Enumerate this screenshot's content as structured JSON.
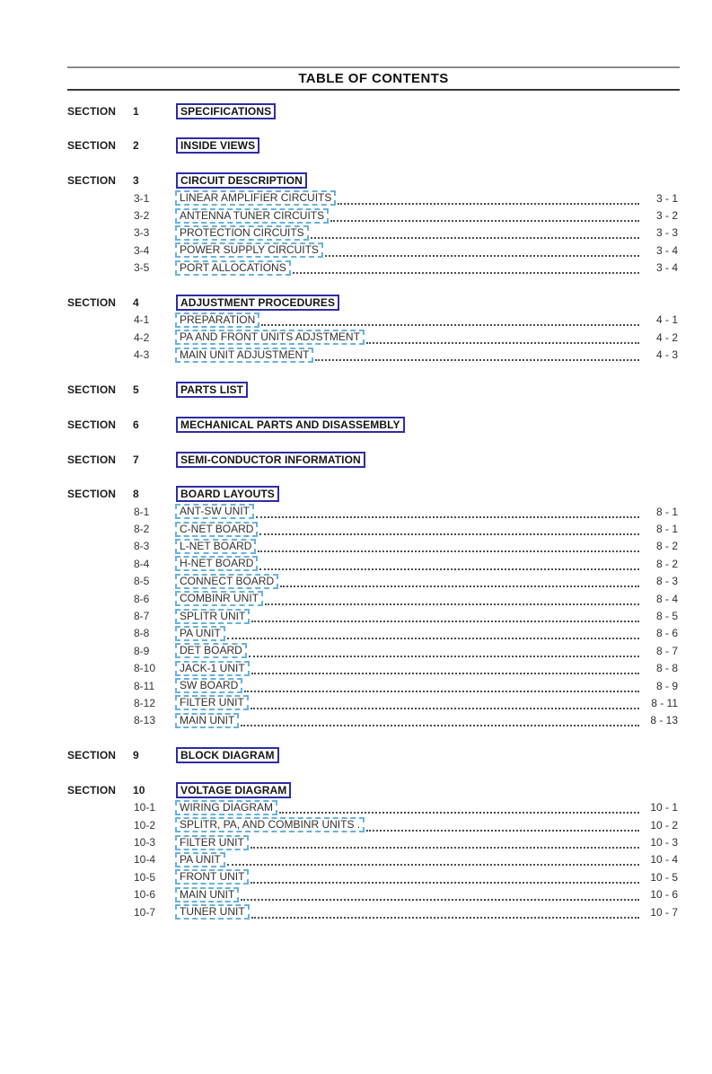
{
  "header": {
    "title": "TABLE OF CONTENTS"
  },
  "colors": {
    "section_link_border": "#2d2da8",
    "item_link_border": "#68b2dc",
    "leader_dot": "#4d4d4d",
    "rule_top": "#8a8a8a",
    "rule_bottom": "#383838"
  },
  "sections": [
    {
      "label": "SECTION",
      "number": "1",
      "title": "SPECIFICATIONS",
      "items": []
    },
    {
      "label": "SECTION",
      "number": "2",
      "title": "INSIDE VIEWS",
      "items": []
    },
    {
      "label": "SECTION",
      "number": "3",
      "title": "CIRCUIT DESCRIPTION",
      "items": [
        {
          "number": "3-1",
          "title": "LINEAR AMPLIFIER CIRCUITS",
          "page": "3 - 1"
        },
        {
          "number": "3-2",
          "title": "ANTENNA TUNER CIRCUITS",
          "page": "3 - 2"
        },
        {
          "number": "3-3",
          "title": "PROTECTION CIRCUITS",
          "page": "3 - 3"
        },
        {
          "number": "3-4",
          "title": "POWER SUPPLY CIRCUITS",
          "page": "3 - 4"
        },
        {
          "number": "3-5",
          "title": "PORT ALLOCATIONS",
          "page": "3 - 4"
        }
      ]
    },
    {
      "label": "SECTION",
      "number": "4",
      "title": "ADJUSTMENT PROCEDURES",
      "items": [
        {
          "number": "4-1",
          "title": "PREPARATION",
          "page": "4 - 1"
        },
        {
          "number": "4-2",
          "title": "PA AND FRONT UNITS ADJSTMENT",
          "page": "4 - 2"
        },
        {
          "number": "4-3",
          "title": "MAIN UNIT ADJUSTMENT",
          "page": "4 - 3"
        }
      ]
    },
    {
      "label": "SECTION",
      "number": "5",
      "title": "PARTS LIST",
      "items": []
    },
    {
      "label": "SECTION",
      "number": "6",
      "title": "MECHANICAL PARTS AND DISASSEMBLY",
      "items": []
    },
    {
      "label": "SECTION",
      "number": "7",
      "title": "SEMI-CONDUCTOR INFORMATION",
      "items": []
    },
    {
      "label": "SECTION",
      "number": "8",
      "title": "BOARD LAYOUTS",
      "items": [
        {
          "number": "8-1",
          "title": "ANT-SW UNIT",
          "page": "8 - 1"
        },
        {
          "number": "8-2",
          "title": "C-NET BOARD",
          "page": "8 - 1"
        },
        {
          "number": "8-3",
          "title": "L-NET BOARD",
          "page": "8 - 2"
        },
        {
          "number": "8-4",
          "title": "H-NET BOARD",
          "page": "8 - 2"
        },
        {
          "number": "8-5",
          "title": "CONNECT BOARD",
          "page": "8 - 3"
        },
        {
          "number": "8-6",
          "title": "COMBINR UNIT",
          "page": "8 - 4"
        },
        {
          "number": "8-7",
          "title": "SPLITR UNIT",
          "page": "8 - 5"
        },
        {
          "number": "8-8",
          "title": "PA UNIT",
          "page": "8 - 6"
        },
        {
          "number": "8-9",
          "title": "DET BOARD",
          "page": "8 - 7"
        },
        {
          "number": "8-10",
          "title": "JACK-1 UNIT",
          "page": "8 - 8"
        },
        {
          "number": "8-11",
          "title": "SW BOARD",
          "page": "8 - 9"
        },
        {
          "number": "8-12",
          "title": "FILTER UNIT",
          "page": "8 - 11"
        },
        {
          "number": "8-13",
          "title": "MAIN UNIT",
          "page": "8 - 13"
        }
      ]
    },
    {
      "label": "SECTION",
      "number": "9",
      "title": "BLOCK DIAGRAM",
      "items": []
    },
    {
      "label": "SECTION",
      "number": "10",
      "title": "VOLTAGE DIAGRAM",
      "items": [
        {
          "number": "10-1",
          "title": "WIRING DIAGRAM",
          "page": "10 - 1"
        },
        {
          "number": "10-2",
          "title": "SPLITR, PA, AND COMBINR UNITS .",
          "page": "10 - 2"
        },
        {
          "number": "10-3",
          "title": "FILTER UNIT",
          "page": "10 - 3"
        },
        {
          "number": "10-4",
          "title": "PA UNIT",
          "page": "10 - 4"
        },
        {
          "number": "10-5",
          "title": "FRONT UNIT",
          "page": "10 - 5"
        },
        {
          "number": "10-6",
          "title": "MAIN UNIT",
          "page": "10 - 6"
        },
        {
          "number": "10-7",
          "title": "TUNER UNIT",
          "page": "10 - 7"
        }
      ]
    }
  ]
}
